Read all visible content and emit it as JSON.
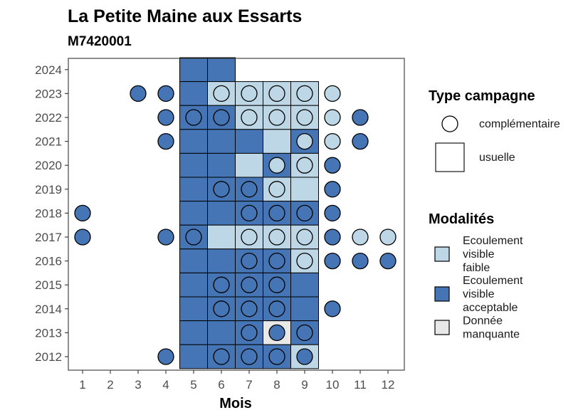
{
  "chart_data": {
    "type": "heatmap",
    "title": "La Petite Maine aux Essarts",
    "subtitle": "M7420001",
    "xlabel": "Mois",
    "ylabel": "",
    "x_ticks": [
      "1",
      "2",
      "3",
      "4",
      "5",
      "6",
      "7",
      "8",
      "9",
      "10",
      "11",
      "12"
    ],
    "y_ticks": [
      "2012",
      "2013",
      "2014",
      "2015",
      "2016",
      "2017",
      "2018",
      "2019",
      "2020",
      "2021",
      "2022",
      "2023",
      "2024"
    ],
    "colors": {
      "Ecoulement visible faible": "#bdd7e7",
      "Ecoulement visible acceptable": "#4575b4",
      "Donnée manquante": "#e8e8e8"
    },
    "legend_type": {
      "title": "Type campagne",
      "items": [
        {
          "shape": "circle",
          "label": "complémentaire"
        },
        {
          "shape": "square",
          "label": "usuelle"
        }
      ]
    },
    "legend_modalites": {
      "title": "Modalités",
      "items": [
        {
          "key": "Ecoulement visible faible",
          "lines": [
            "Ecoulement",
            "visible",
            "faible"
          ]
        },
        {
          "key": "Ecoulement visible acceptable",
          "lines": [
            "Ecoulement",
            "visible",
            "acceptable"
          ]
        },
        {
          "key": "Donnée manquante",
          "lines": [
            "Donnée",
            "manquante"
          ]
        }
      ]
    },
    "tiles": [
      {
        "year": 2024,
        "month": 5,
        "modalite": "Ecoulement visible acceptable"
      },
      {
        "year": 2024,
        "month": 6,
        "modalite": "Ecoulement visible acceptable"
      },
      {
        "year": 2023,
        "month": 5,
        "modalite": "Ecoulement visible acceptable"
      },
      {
        "year": 2023,
        "month": 6,
        "modalite": "Ecoulement visible faible"
      },
      {
        "year": 2023,
        "month": 7,
        "modalite": "Ecoulement visible faible"
      },
      {
        "year": 2023,
        "month": 8,
        "modalite": "Ecoulement visible faible"
      },
      {
        "year": 2023,
        "month": 9,
        "modalite": "Ecoulement visible faible"
      },
      {
        "year": 2022,
        "month": 5,
        "modalite": "Ecoulement visible acceptable"
      },
      {
        "year": 2022,
        "month": 6,
        "modalite": "Ecoulement visible acceptable"
      },
      {
        "year": 2022,
        "month": 7,
        "modalite": "Ecoulement visible faible"
      },
      {
        "year": 2022,
        "month": 8,
        "modalite": "Ecoulement visible faible"
      },
      {
        "year": 2022,
        "month": 9,
        "modalite": "Ecoulement visible faible"
      },
      {
        "year": 2021,
        "month": 5,
        "modalite": "Ecoulement visible acceptable"
      },
      {
        "year": 2021,
        "month": 6,
        "modalite": "Ecoulement visible acceptable"
      },
      {
        "year": 2021,
        "month": 7,
        "modalite": "Ecoulement visible acceptable"
      },
      {
        "year": 2021,
        "month": 8,
        "modalite": "Ecoulement visible faible"
      },
      {
        "year": 2021,
        "month": 9,
        "modalite": "Ecoulement visible acceptable"
      },
      {
        "year": 2020,
        "month": 5,
        "modalite": "Ecoulement visible acceptable"
      },
      {
        "year": 2020,
        "month": 6,
        "modalite": "Ecoulement visible acceptable"
      },
      {
        "year": 2020,
        "month": 7,
        "modalite": "Ecoulement visible faible"
      },
      {
        "year": 2020,
        "month": 8,
        "modalite": "Ecoulement visible acceptable"
      },
      {
        "year": 2020,
        "month": 9,
        "modalite": "Ecoulement visible faible"
      },
      {
        "year": 2019,
        "month": 5,
        "modalite": "Ecoulement visible acceptable"
      },
      {
        "year": 2019,
        "month": 6,
        "modalite": "Ecoulement visible acceptable"
      },
      {
        "year": 2019,
        "month": 7,
        "modalite": "Ecoulement visible acceptable"
      },
      {
        "year": 2019,
        "month": 8,
        "modalite": "Ecoulement visible faible"
      },
      {
        "year": 2019,
        "month": 9,
        "modalite": "Ecoulement visible faible"
      },
      {
        "year": 2018,
        "month": 5,
        "modalite": "Ecoulement visible acceptable"
      },
      {
        "year": 2018,
        "month": 6,
        "modalite": "Ecoulement visible acceptable"
      },
      {
        "year": 2018,
        "month": 7,
        "modalite": "Ecoulement visible acceptable"
      },
      {
        "year": 2018,
        "month": 8,
        "modalite": "Ecoulement visible acceptable"
      },
      {
        "year": 2018,
        "month": 9,
        "modalite": "Ecoulement visible acceptable"
      },
      {
        "year": 2017,
        "month": 5,
        "modalite": "Ecoulement visible acceptable"
      },
      {
        "year": 2017,
        "month": 6,
        "modalite": "Ecoulement visible faible"
      },
      {
        "year": 2017,
        "month": 7,
        "modalite": "Ecoulement visible faible"
      },
      {
        "year": 2017,
        "month": 8,
        "modalite": "Ecoulement visible faible"
      },
      {
        "year": 2017,
        "month": 9,
        "modalite": "Ecoulement visible faible"
      },
      {
        "year": 2016,
        "month": 5,
        "modalite": "Ecoulement visible acceptable"
      },
      {
        "year": 2016,
        "month": 6,
        "modalite": "Ecoulement visible acceptable"
      },
      {
        "year": 2016,
        "month": 7,
        "modalite": "Ecoulement visible acceptable"
      },
      {
        "year": 2016,
        "month": 8,
        "modalite": "Ecoulement visible acceptable"
      },
      {
        "year": 2016,
        "month": 9,
        "modalite": "Ecoulement visible faible"
      },
      {
        "year": 2015,
        "month": 5,
        "modalite": "Ecoulement visible acceptable"
      },
      {
        "year": 2015,
        "month": 6,
        "modalite": "Ecoulement visible acceptable"
      },
      {
        "year": 2015,
        "month": 7,
        "modalite": "Ecoulement visible acceptable"
      },
      {
        "year": 2015,
        "month": 8,
        "modalite": "Ecoulement visible acceptable"
      },
      {
        "year": 2015,
        "month": 9,
        "modalite": "Ecoulement visible acceptable"
      },
      {
        "year": 2014,
        "month": 5,
        "modalite": "Ecoulement visible acceptable"
      },
      {
        "year": 2014,
        "month": 6,
        "modalite": "Ecoulement visible acceptable"
      },
      {
        "year": 2014,
        "month": 7,
        "modalite": "Ecoulement visible acceptable"
      },
      {
        "year": 2014,
        "month": 8,
        "modalite": "Ecoulement visible acceptable"
      },
      {
        "year": 2014,
        "month": 9,
        "modalite": "Ecoulement visible acceptable"
      },
      {
        "year": 2013,
        "month": 5,
        "modalite": "Ecoulement visible acceptable"
      },
      {
        "year": 2013,
        "month": 6,
        "modalite": "Ecoulement visible acceptable"
      },
      {
        "year": 2013,
        "month": 7,
        "modalite": "Ecoulement visible acceptable"
      },
      {
        "year": 2013,
        "month": 8,
        "modalite": "Donnée manquante"
      },
      {
        "year": 2013,
        "month": 9,
        "modalite": "Ecoulement visible acceptable"
      },
      {
        "year": 2012,
        "month": 5,
        "modalite": "Ecoulement visible acceptable"
      },
      {
        "year": 2012,
        "month": 6,
        "modalite": "Ecoulement visible acceptable"
      },
      {
        "year": 2012,
        "month": 7,
        "modalite": "Ecoulement visible acceptable"
      },
      {
        "year": 2012,
        "month": 8,
        "modalite": "Ecoulement visible acceptable"
      },
      {
        "year": 2012,
        "month": 9,
        "modalite": "Ecoulement visible faible"
      }
    ],
    "points": [
      {
        "year": 2023,
        "month": 3,
        "modalite": "Ecoulement visible acceptable"
      },
      {
        "year": 2023,
        "month": 4,
        "modalite": "Ecoulement visible acceptable"
      },
      {
        "year": 2023,
        "month": 6,
        "modalite": "Ecoulement visible faible"
      },
      {
        "year": 2023,
        "month": 7,
        "modalite": "Ecoulement visible faible"
      },
      {
        "year": 2023,
        "month": 8,
        "modalite": "Ecoulement visible faible"
      },
      {
        "year": 2023,
        "month": 9,
        "modalite": "Ecoulement visible faible"
      },
      {
        "year": 2023,
        "month": 10,
        "modalite": "Ecoulement visible faible"
      },
      {
        "year": 2022,
        "month": 4,
        "modalite": "Ecoulement visible acceptable"
      },
      {
        "year": 2022,
        "month": 5,
        "modalite": "Ecoulement visible acceptable"
      },
      {
        "year": 2022,
        "month": 6,
        "modalite": "Ecoulement visible acceptable"
      },
      {
        "year": 2022,
        "month": 7,
        "modalite": "Ecoulement visible faible"
      },
      {
        "year": 2022,
        "month": 8,
        "modalite": "Ecoulement visible faible"
      },
      {
        "year": 2022,
        "month": 9,
        "modalite": "Ecoulement visible faible"
      },
      {
        "year": 2022,
        "month": 10,
        "modalite": "Ecoulement visible faible"
      },
      {
        "year": 2022,
        "month": 11,
        "modalite": "Ecoulement visible acceptable"
      },
      {
        "year": 2021,
        "month": 4,
        "modalite": "Ecoulement visible acceptable"
      },
      {
        "year": 2021,
        "month": 9,
        "modalite": "Ecoulement visible faible"
      },
      {
        "year": 2021,
        "month": 10,
        "modalite": "Ecoulement visible faible"
      },
      {
        "year": 2021,
        "month": 11,
        "modalite": "Ecoulement visible acceptable"
      },
      {
        "year": 2020,
        "month": 8,
        "modalite": "Ecoulement visible faible"
      },
      {
        "year": 2020,
        "month": 9,
        "modalite": "Ecoulement visible faible"
      },
      {
        "year": 2020,
        "month": 10,
        "modalite": "Ecoulement visible acceptable"
      },
      {
        "year": 2019,
        "month": 6,
        "modalite": "Ecoulement visible acceptable"
      },
      {
        "year": 2019,
        "month": 7,
        "modalite": "Ecoulement visible acceptable"
      },
      {
        "year": 2019,
        "month": 8,
        "modalite": "Ecoulement visible faible"
      },
      {
        "year": 2019,
        "month": 10,
        "modalite": "Ecoulement visible acceptable"
      },
      {
        "year": 2018,
        "month": 1,
        "modalite": "Ecoulement visible acceptable"
      },
      {
        "year": 2018,
        "month": 7,
        "modalite": "Ecoulement visible acceptable"
      },
      {
        "year": 2018,
        "month": 8,
        "modalite": "Ecoulement visible acceptable"
      },
      {
        "year": 2018,
        "month": 9,
        "modalite": "Ecoulement visible acceptable"
      },
      {
        "year": 2018,
        "month": 10,
        "modalite": "Ecoulement visible acceptable"
      },
      {
        "year": 2017,
        "month": 1,
        "modalite": "Ecoulement visible acceptable"
      },
      {
        "year": 2017,
        "month": 4,
        "modalite": "Ecoulement visible acceptable"
      },
      {
        "year": 2017,
        "month": 5,
        "modalite": "Ecoulement visible acceptable"
      },
      {
        "year": 2017,
        "month": 7,
        "modalite": "Ecoulement visible faible"
      },
      {
        "year": 2017,
        "month": 8,
        "modalite": "Ecoulement visible faible"
      },
      {
        "year": 2017,
        "month": 9,
        "modalite": "Ecoulement visible faible"
      },
      {
        "year": 2017,
        "month": 10,
        "modalite": "Ecoulement visible acceptable"
      },
      {
        "year": 2017,
        "month": 11,
        "modalite": "Ecoulement visible faible"
      },
      {
        "year": 2017,
        "month": 12,
        "modalite": "Ecoulement visible faible"
      },
      {
        "year": 2016,
        "month": 7,
        "modalite": "Ecoulement visible acceptable"
      },
      {
        "year": 2016,
        "month": 8,
        "modalite": "Ecoulement visible acceptable"
      },
      {
        "year": 2016,
        "month": 9,
        "modalite": "Ecoulement visible faible"
      },
      {
        "year": 2016,
        "month": 10,
        "modalite": "Ecoulement visible acceptable"
      },
      {
        "year": 2016,
        "month": 11,
        "modalite": "Ecoulement visible acceptable"
      },
      {
        "year": 2016,
        "month": 12,
        "modalite": "Ecoulement visible acceptable"
      },
      {
        "year": 2015,
        "month": 6,
        "modalite": "Ecoulement visible acceptable"
      },
      {
        "year": 2015,
        "month": 7,
        "modalite": "Ecoulement visible acceptable"
      },
      {
        "year": 2015,
        "month": 8,
        "modalite": "Ecoulement visible acceptable"
      },
      {
        "year": 2014,
        "month": 6,
        "modalite": "Ecoulement visible acceptable"
      },
      {
        "year": 2014,
        "month": 7,
        "modalite": "Ecoulement visible acceptable"
      },
      {
        "year": 2014,
        "month": 8,
        "modalite": "Ecoulement visible acceptable"
      },
      {
        "year": 2014,
        "month": 10,
        "modalite": "Ecoulement visible acceptable"
      },
      {
        "year": 2013,
        "month": 7,
        "modalite": "Ecoulement visible acceptable"
      },
      {
        "year": 2013,
        "month": 8,
        "modalite": "Ecoulement visible acceptable"
      },
      {
        "year": 2013,
        "month": 9,
        "modalite": "Ecoulement visible acceptable"
      },
      {
        "year": 2012,
        "month": 4,
        "modalite": "Ecoulement visible acceptable"
      },
      {
        "year": 2012,
        "month": 6,
        "modalite": "Ecoulement visible acceptable"
      },
      {
        "year": 2012,
        "month": 7,
        "modalite": "Ecoulement visible acceptable"
      },
      {
        "year": 2012,
        "month": 8,
        "modalite": "Ecoulement visible acceptable"
      },
      {
        "year": 2012,
        "month": 9,
        "modalite": "Ecoulement visible acceptable"
      }
    ]
  }
}
